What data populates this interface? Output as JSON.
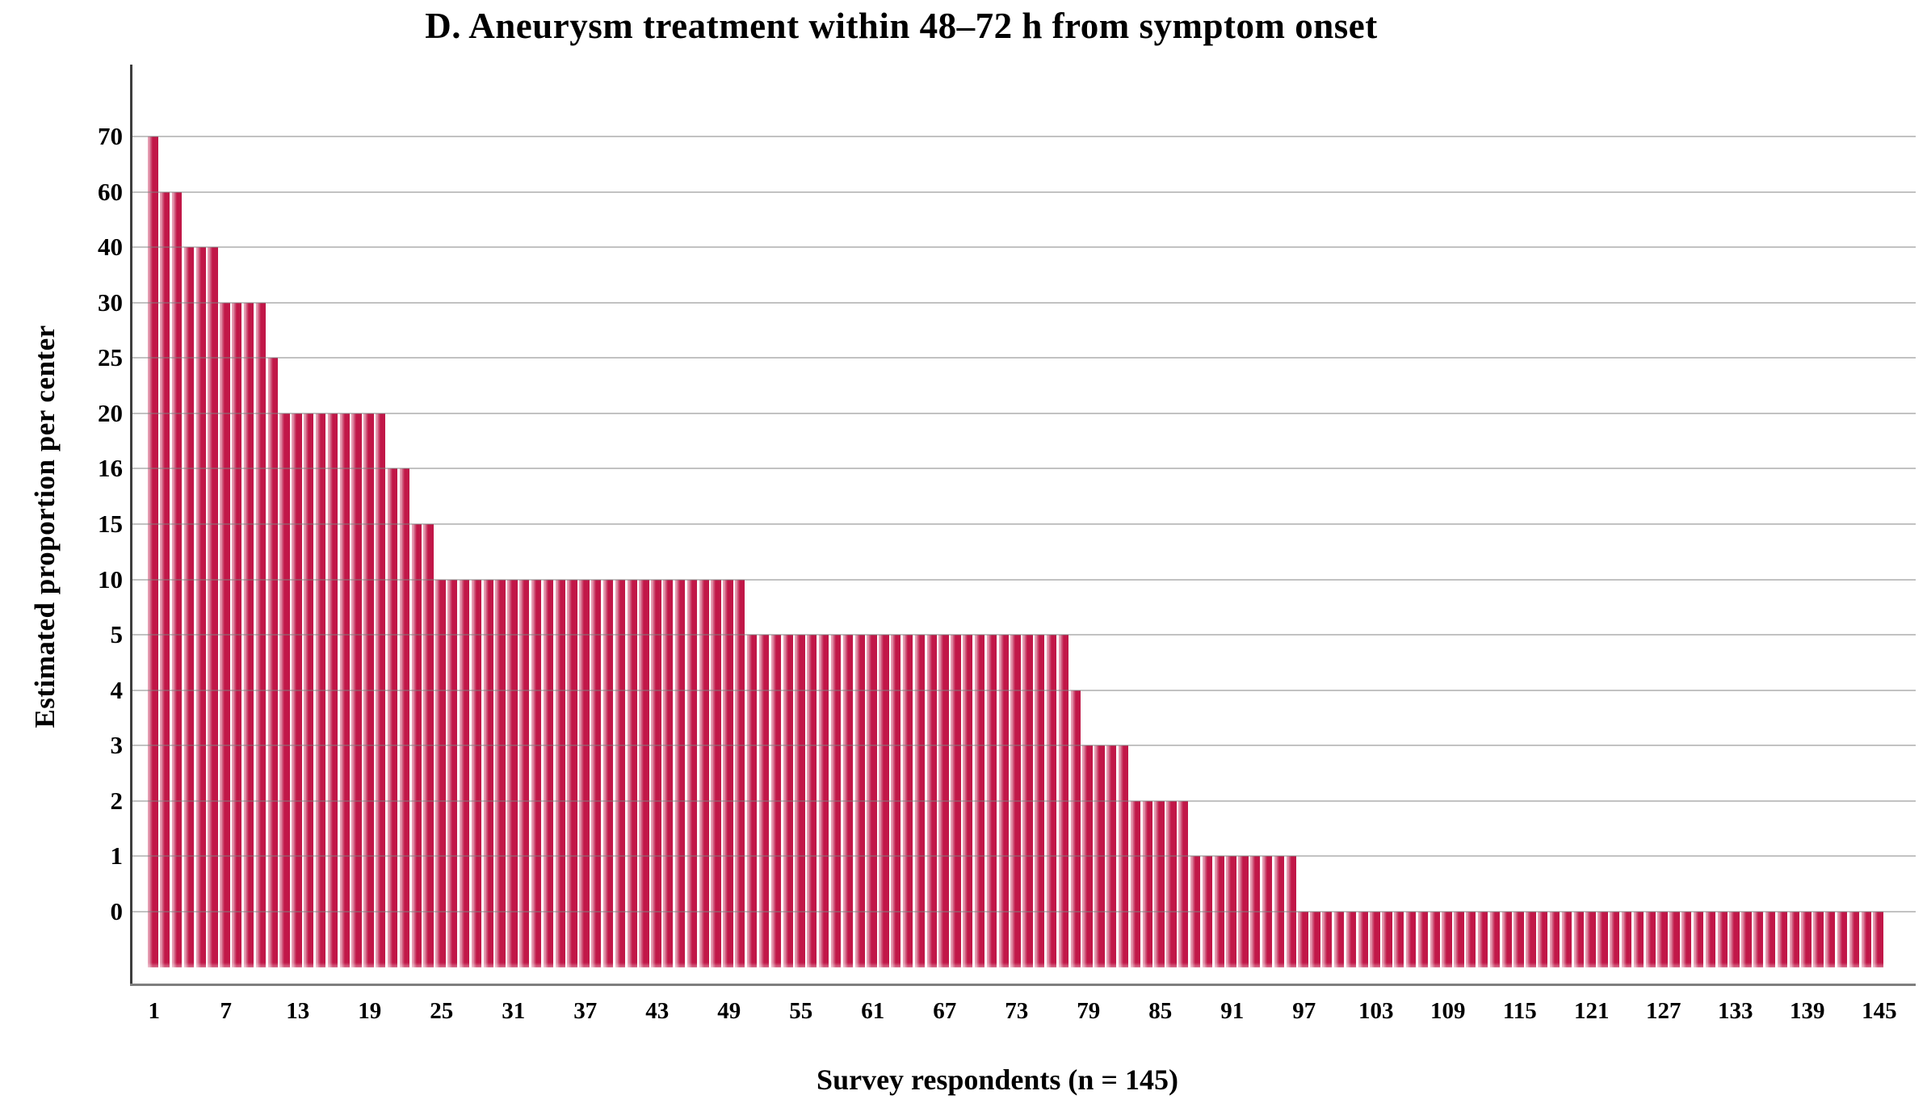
{
  "title": "D. Aneurysm treatment within 48–72 h from symptom onset",
  "y_axis": {
    "label": "Estimated proportion per center",
    "tick_values": [
      70,
      60,
      40,
      30,
      25,
      20,
      16,
      15,
      10,
      5,
      4,
      3,
      2,
      1,
      0
    ]
  },
  "x_axis": {
    "label": "Survey respondents (n = 145)",
    "tick_values": [
      1,
      7,
      13,
      19,
      25,
      31,
      37,
      43,
      49,
      55,
      61,
      67,
      73,
      79,
      85,
      91,
      97,
      103,
      109,
      115,
      121,
      127,
      133,
      139,
      145
    ]
  },
  "colors": {
    "bar": "#C11748",
    "bar_highlight": "#E59DB2",
    "gridline": "#808080",
    "axis_line": "#3E3E3E",
    "baseline": "#7E7E7E",
    "text": "#000000"
  },
  "chart_data": {
    "type": "bar",
    "title": "D. Aneurysm treatment within 48–72 h from symptom onset",
    "xlabel": "Survey respondents (n = 145)",
    "ylabel": "Estimated proportion per center",
    "n_respondents": 145,
    "y_scale_note": "ordinal axis: tick values 70,60,40,30,25,20,16,15,10,5,4,3,2,1,0 are equally spaced; bars sorted descending; zero-value bars drawn as stubs below the 0 line",
    "grid": true,
    "legend": false,
    "value_distribution": [
      {
        "value": 70,
        "count": 1
      },
      {
        "value": 60,
        "count": 2
      },
      {
        "value": 40,
        "count": 3
      },
      {
        "value": 30,
        "count": 4
      },
      {
        "value": 25,
        "count": 1
      },
      {
        "value": 20,
        "count": 9
      },
      {
        "value": 16,
        "count": 2
      },
      {
        "value": 15,
        "count": 2
      },
      {
        "value": 10,
        "count": 26
      },
      {
        "value": 5,
        "count": 27
      },
      {
        "value": 4,
        "count": 1
      },
      {
        "value": 3,
        "count": 4
      },
      {
        "value": 2,
        "count": 5
      },
      {
        "value": 1,
        "count": 9
      },
      {
        "value": 0,
        "count": 49
      }
    ],
    "values": [
      70,
      60,
      60,
      40,
      40,
      40,
      30,
      30,
      30,
      30,
      25,
      20,
      20,
      20,
      20,
      20,
      20,
      20,
      20,
      20,
      16,
      16,
      15,
      15,
      10,
      10,
      10,
      10,
      10,
      10,
      10,
      10,
      10,
      10,
      10,
      10,
      10,
      10,
      10,
      10,
      10,
      10,
      10,
      10,
      10,
      10,
      10,
      10,
      10,
      10,
      5,
      5,
      5,
      5,
      5,
      5,
      5,
      5,
      5,
      5,
      5,
      5,
      5,
      5,
      5,
      5,
      5,
      5,
      5,
      5,
      5,
      5,
      5,
      5,
      5,
      5,
      5,
      4,
      3,
      3,
      3,
      3,
      2,
      2,
      2,
      2,
      2,
      1,
      1,
      1,
      1,
      1,
      1,
      1,
      1,
      1,
      0,
      0,
      0,
      0,
      0,
      0,
      0,
      0,
      0,
      0,
      0,
      0,
      0,
      0,
      0,
      0,
      0,
      0,
      0,
      0,
      0,
      0,
      0,
      0,
      0,
      0,
      0,
      0,
      0,
      0,
      0,
      0,
      0,
      0,
      0,
      0,
      0,
      0,
      0,
      0,
      0,
      0,
      0,
      0,
      0,
      0,
      0,
      0,
      0
    ]
  }
}
